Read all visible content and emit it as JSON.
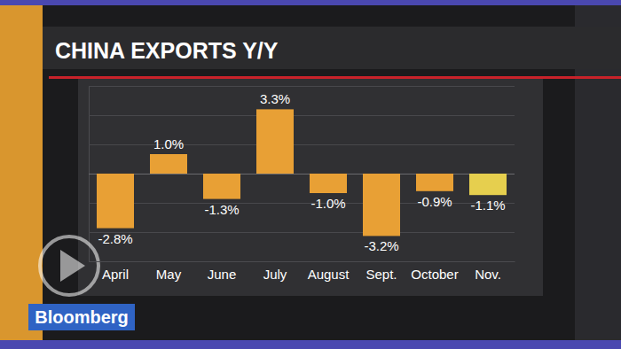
{
  "chart_data": {
    "type": "bar",
    "title": "CHINA EXPORTS Y/Y",
    "categories": [
      "April",
      "May",
      "June",
      "July",
      "August",
      "Sept.",
      "October",
      "Nov."
    ],
    "values": [
      -2.8,
      1.0,
      -1.3,
      3.3,
      -1.0,
      -3.2,
      -0.9,
      -1.1
    ],
    "value_labels": [
      "-2.8%",
      "1.0%",
      "-1.3%",
      "3.3%",
      "-1.0%",
      "-3.2%",
      "-0.9%",
      "-1.1%"
    ],
    "colors": [
      "#e8a035",
      "#e8a035",
      "#e8a035",
      "#e8a035",
      "#e8a035",
      "#e8a035",
      "#e8a035",
      "#e6cf4e"
    ],
    "ylim": [
      -4.5,
      4.5
    ],
    "yticks": [
      -4.5,
      -3,
      -1.5,
      0,
      1.5,
      3,
      4.5
    ],
    "grid": true,
    "data_labels": true,
    "tick_labels": "x",
    "annotations": [
      "Bloomberg"
    ]
  }
}
